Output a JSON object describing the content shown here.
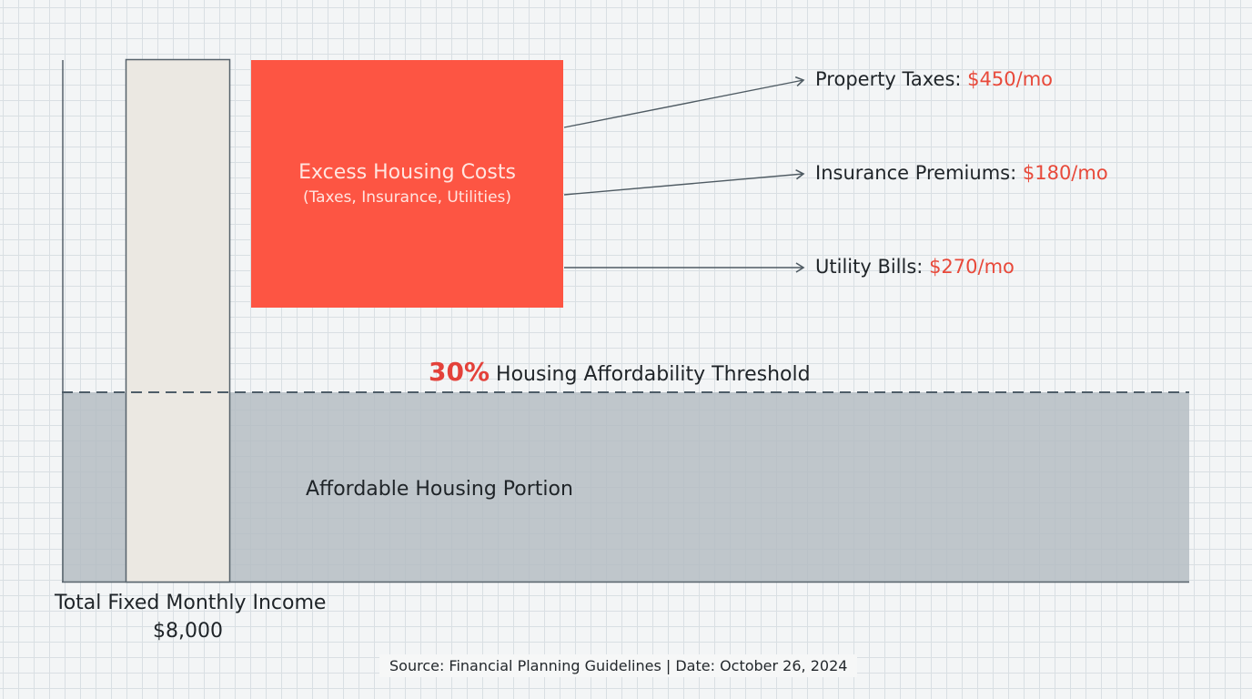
{
  "colors": {
    "background": "#f3f5f6",
    "grid": "#d9dfe3",
    "excess_box": "#fd5543",
    "affordable_area": "#b2bac0",
    "income_bar": "#ebe8e2",
    "threshold_line": "#4e5d68",
    "accent_red": "#e8493a"
  },
  "excess_box": {
    "title": "Excess Housing Costs",
    "subtitle": "(Taxes, Insurance, Utilities)"
  },
  "costs": [
    {
      "label": "Property Taxes:",
      "amount": "$450/mo"
    },
    {
      "label": "Insurance Premiums:",
      "amount": "$180/mo"
    },
    {
      "label": "Utility Bills:",
      "amount": "$270/mo"
    }
  ],
  "threshold": {
    "percent": "30%",
    "label": "Housing Affordability Threshold"
  },
  "affordable": {
    "label": "Affordable Housing Portion"
  },
  "income": {
    "title": "Total Fixed Monthly Income",
    "value": "$8,000"
  },
  "source": "Source: Financial Planning Guidelines | Date: October 26, 2024"
}
